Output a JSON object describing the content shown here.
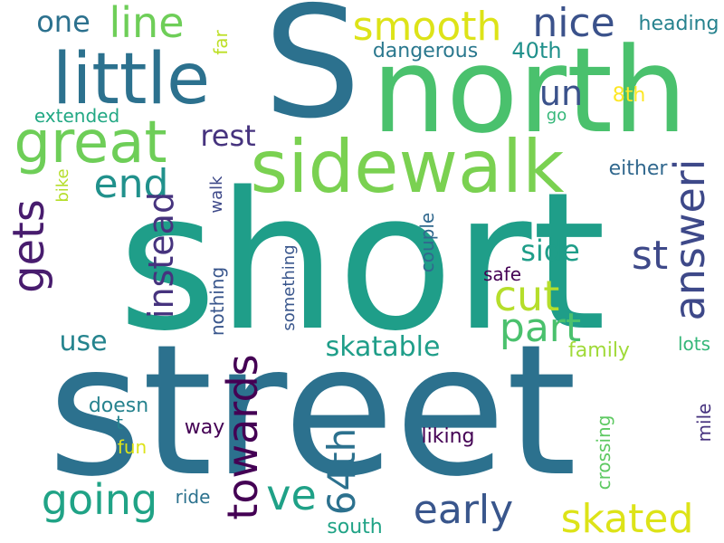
{
  "words": [
    {
      "text": "short",
      "color": "#1f9e89",
      "orientation": "h"
    },
    {
      "text": "street",
      "color": "#2c718e",
      "orientation": "h"
    },
    {
      "text": "S",
      "color": "#2c718e",
      "orientation": "h"
    },
    {
      "text": "north",
      "color": "#4ac16d",
      "orientation": "h"
    },
    {
      "text": "little",
      "color": "#2c718e",
      "orientation": "h"
    },
    {
      "text": "sidewalk",
      "color": "#7ad151",
      "orientation": "h"
    },
    {
      "text": "great",
      "color": "#6ece58",
      "orientation": "h"
    },
    {
      "text": "line",
      "color": "#6ece58",
      "orientation": "h"
    },
    {
      "text": "one",
      "color": "#2c718e",
      "orientation": "h"
    },
    {
      "text": "smooth",
      "color": "#dde318",
      "orientation": "h"
    },
    {
      "text": "nice",
      "color": "#3b528b",
      "orientation": "h"
    },
    {
      "text": "heading",
      "color": "#26828e",
      "orientation": "h"
    },
    {
      "text": "dangerous",
      "color": "#2a788e",
      "orientation": "h"
    },
    {
      "text": "40th",
      "color": "#21918c",
      "orientation": "h"
    },
    {
      "text": "un",
      "color": "#3b528b",
      "orientation": "h"
    },
    {
      "text": "8th",
      "color": "#fde725",
      "orientation": "h"
    },
    {
      "text": "far",
      "color": "#bddf26",
      "orientation": "v"
    },
    {
      "text": "extended",
      "color": "#22a884",
      "orientation": "h"
    },
    {
      "text": "go",
      "color": "#35b779",
      "orientation": "h"
    },
    {
      "text": "rest",
      "color": "#46337e",
      "orientation": "h"
    },
    {
      "text": "end",
      "color": "#21918c",
      "orientation": "h"
    },
    {
      "text": "gets",
      "color": "#481c6e",
      "orientation": "v"
    },
    {
      "text": "either",
      "color": "#31688e",
      "orientation": "h"
    },
    {
      "text": "answeri",
      "color": "#3e4989",
      "orientation": "v"
    },
    {
      "text": "bike",
      "color": "#b5de2b",
      "orientation": "v"
    },
    {
      "text": "walk",
      "color": "#3e4989",
      "orientation": "v"
    },
    {
      "text": "instead",
      "color": "#46337e",
      "orientation": "v"
    },
    {
      "text": "st",
      "color": "#3e4989",
      "orientation": "h"
    },
    {
      "text": "side",
      "color": "#1f9e89",
      "orientation": "h"
    },
    {
      "text": "couple",
      "color": "#31688e",
      "orientation": "v"
    },
    {
      "text": "safe",
      "color": "#440154",
      "orientation": "h"
    },
    {
      "text": "cut",
      "color": "#b5de2b",
      "orientation": "h"
    },
    {
      "text": "part",
      "color": "#4ac16d",
      "orientation": "h"
    },
    {
      "text": "nothing",
      "color": "#39568c",
      "orientation": "v"
    },
    {
      "text": "something",
      "color": "#39568c",
      "orientation": "v"
    },
    {
      "text": "use",
      "color": "#25848e",
      "orientation": "h"
    },
    {
      "text": "skatable",
      "color": "#1f9e89",
      "orientation": "h"
    },
    {
      "text": "family",
      "color": "#a0da39",
      "orientation": "h"
    },
    {
      "text": "lots",
      "color": "#35b779",
      "orientation": "h"
    },
    {
      "text": "doesn",
      "color": "#26828e",
      "orientation": "h"
    },
    {
      "text": "t",
      "color": "#26828e",
      "orientation": "h"
    },
    {
      "text": "towards",
      "color": "#440154",
      "orientation": "v"
    },
    {
      "text": "way",
      "color": "#440154",
      "orientation": "h"
    },
    {
      "text": "fun",
      "color": "#dde318",
      "orientation": "h"
    },
    {
      "text": "going",
      "color": "#20a386",
      "orientation": "h"
    },
    {
      "text": "ve",
      "color": "#1fa187",
      "orientation": "h"
    },
    {
      "text": "64th",
      "color": "#2c718e",
      "orientation": "v"
    },
    {
      "text": "early",
      "color": "#39568c",
      "orientation": "h"
    },
    {
      "text": "liking",
      "color": "#440154",
      "orientation": "h"
    },
    {
      "text": "crossing",
      "color": "#5ec962",
      "orientation": "v"
    },
    {
      "text": "mile",
      "color": "#46327e",
      "orientation": "v"
    },
    {
      "text": "skated",
      "color": "#dde318",
      "orientation": "h"
    },
    {
      "text": "ride",
      "color": "#2c728e",
      "orientation": "h"
    },
    {
      "text": "south",
      "color": "#20a386",
      "orientation": "h"
    }
  ]
}
